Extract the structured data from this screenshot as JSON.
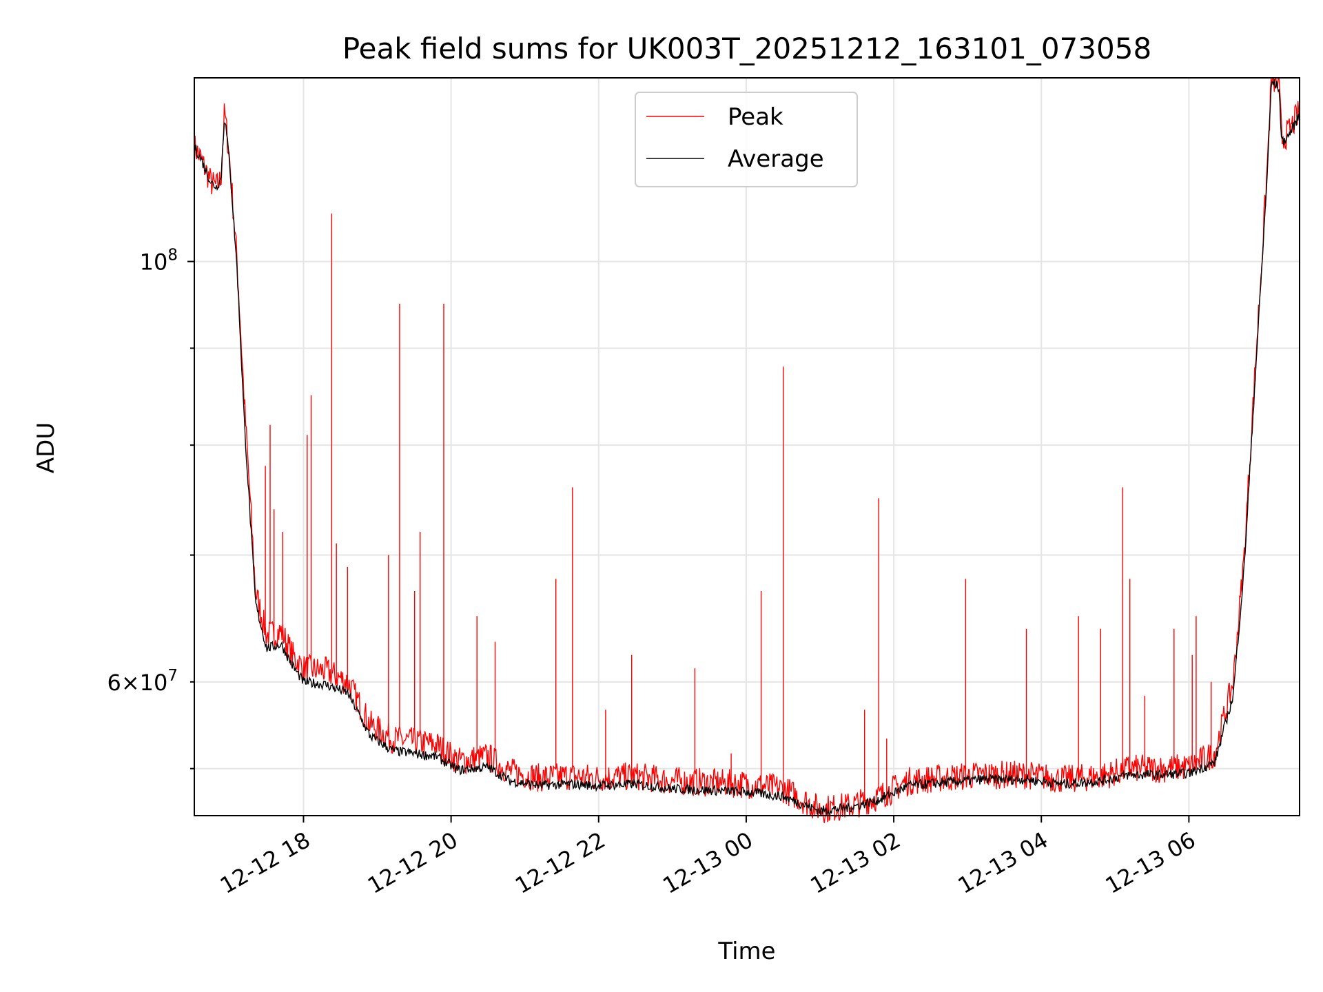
{
  "chart_data": {
    "type": "line",
    "title": "Peak field sums for UK003T_20251212_163101_073058",
    "xlabel": "Time",
    "ylabel": "ADU",
    "y_scale": "log",
    "ylim": [
      51000000,
      125000000
    ],
    "x_unit": "hours since 2025-12-12 00:00",
    "xlim": [
      16.52,
      31.5
    ],
    "x_ticks": [
      {
        "value": 18,
        "label": "12-12 18"
      },
      {
        "value": 20,
        "label": "12-12 20"
      },
      {
        "value": 22,
        "label": "12-12 22"
      },
      {
        "value": 24,
        "label": "12-13 00"
      },
      {
        "value": 26,
        "label": "12-13 02"
      },
      {
        "value": 28,
        "label": "12-13 04"
      },
      {
        "value": 30,
        "label": "12-13 06"
      }
    ],
    "y_ticks_major": [
      {
        "value": 100000000,
        "label": "10^8"
      }
    ],
    "y_ticks_minor": [
      {
        "value": 60000000,
        "label": "6×10^7"
      },
      {
        "value": 70000000
      },
      {
        "value": 80000000
      },
      {
        "value": 90000000
      },
      {
        "value": 54000000
      }
    ],
    "grid": true,
    "legend": {
      "position": "top-center",
      "entries": [
        "Peak",
        "Average"
      ]
    },
    "series": [
      {
        "name": "Peak",
        "color": "#ff0000",
        "points": [
          [
            16.52,
            115000000
          ],
          [
            16.6,
            113500000
          ],
          [
            16.75,
            110000000
          ],
          [
            16.82,
            109500000
          ],
          [
            16.88,
            110500000
          ],
          [
            16.93,
            120000000
          ],
          [
            17.0,
            113000000
          ],
          [
            17.1,
            100000000
          ],
          [
            17.2,
            84000000
          ],
          [
            17.35,
            67000000
          ],
          [
            17.5,
            63500000
          ],
          [
            17.7,
            63800000
          ],
          [
            17.85,
            62000000
          ],
          [
            18.0,
            61000000
          ],
          [
            18.3,
            60800000
          ],
          [
            18.6,
            60000000
          ],
          [
            18.9,
            57000000
          ],
          [
            19.2,
            56000000
          ],
          [
            19.5,
            55800000
          ],
          [
            19.8,
            55600000
          ],
          [
            20.1,
            54500000
          ],
          [
            20.5,
            54800000
          ],
          [
            20.8,
            53800000
          ],
          [
            21.2,
            53400000
          ],
          [
            21.6,
            53500000
          ],
          [
            22.0,
            53400000
          ],
          [
            22.5,
            53500000
          ],
          [
            23.0,
            53200000
          ],
          [
            23.5,
            53100000
          ],
          [
            24.0,
            53000000
          ],
          [
            24.5,
            52700000
          ],
          [
            25.0,
            51400000
          ],
          [
            25.4,
            51600000
          ],
          [
            25.8,
            52200000
          ],
          [
            26.2,
            53200000
          ],
          [
            26.7,
            53400000
          ],
          [
            27.2,
            53600000
          ],
          [
            27.8,
            53600000
          ],
          [
            28.3,
            53300000
          ],
          [
            28.8,
            53500000
          ],
          [
            29.2,
            54000000
          ],
          [
            29.6,
            54000000
          ],
          [
            30.0,
            54100000
          ],
          [
            30.35,
            55000000
          ],
          [
            30.6,
            60000000
          ],
          [
            30.75,
            70000000
          ],
          [
            30.9,
            88000000
          ],
          [
            31.05,
            110000000
          ],
          [
            31.12,
            125000000
          ],
          [
            31.22,
            124000000
          ],
          [
            31.26,
            116000000
          ],
          [
            31.35,
            117000000
          ],
          [
            31.5,
            120000000
          ]
        ],
        "spikes": [
          [
            17.48,
            78000000
          ],
          [
            17.55,
            82000000
          ],
          [
            17.6,
            74000000
          ],
          [
            17.72,
            72000000
          ],
          [
            18.05,
            81000000
          ],
          [
            18.1,
            85000000
          ],
          [
            18.38,
            106000000
          ],
          [
            18.45,
            71000000
          ],
          [
            18.6,
            69000000
          ],
          [
            19.15,
            70000000
          ],
          [
            19.3,
            95000000
          ],
          [
            19.5,
            67000000
          ],
          [
            19.58,
            72000000
          ],
          [
            19.9,
            95000000
          ],
          [
            20.35,
            65000000
          ],
          [
            20.6,
            63000000
          ],
          [
            21.42,
            68000000
          ],
          [
            21.65,
            76000000
          ],
          [
            22.1,
            58000000
          ],
          [
            22.45,
            62000000
          ],
          [
            23.3,
            61000000
          ],
          [
            23.8,
            55000000
          ],
          [
            24.2,
            67000000
          ],
          [
            24.5,
            88000000
          ],
          [
            25.6,
            58000000
          ],
          [
            25.8,
            75000000
          ],
          [
            25.9,
            56000000
          ],
          [
            26.97,
            68000000
          ],
          [
            27.8,
            64000000
          ],
          [
            28.5,
            65000000
          ],
          [
            28.8,
            64000000
          ],
          [
            29.1,
            76000000
          ],
          [
            29.2,
            68000000
          ],
          [
            29.4,
            59000000
          ],
          [
            29.8,
            64000000
          ],
          [
            30.05,
            62000000
          ],
          [
            30.1,
            65000000
          ],
          [
            30.3,
            60000000
          ]
        ]
      },
      {
        "name": "Average",
        "color": "#000000",
        "points": [
          [
            16.52,
            115000000
          ],
          [
            16.6,
            113500000
          ],
          [
            16.75,
            110000000
          ],
          [
            16.82,
            109500000
          ],
          [
            16.88,
            110500000
          ],
          [
            16.93,
            119500000
          ],
          [
            17.0,
            112500000
          ],
          [
            17.1,
            99000000
          ],
          [
            17.2,
            82000000
          ],
          [
            17.35,
            66000000
          ],
          [
            17.5,
            62500000
          ],
          [
            17.7,
            62800000
          ],
          [
            17.85,
            61200000
          ],
          [
            18.0,
            60000000
          ],
          [
            18.3,
            59800000
          ],
          [
            18.6,
            59200000
          ],
          [
            18.9,
            56200000
          ],
          [
            19.2,
            55200000
          ],
          [
            19.5,
            55000000
          ],
          [
            19.8,
            54800000
          ],
          [
            20.1,
            53900000
          ],
          [
            20.5,
            54100000
          ],
          [
            20.8,
            53200000
          ],
          [
            21.2,
            52900000
          ],
          [
            21.6,
            53000000
          ],
          [
            22.0,
            52900000
          ],
          [
            22.5,
            53000000
          ],
          [
            23.0,
            52700000
          ],
          [
            23.5,
            52600000
          ],
          [
            24.0,
            52500000
          ],
          [
            24.5,
            52200000
          ],
          [
            25.0,
            51300000
          ],
          [
            25.4,
            51500000
          ],
          [
            25.8,
            52000000
          ],
          [
            26.2,
            52900000
          ],
          [
            26.7,
            53100000
          ],
          [
            27.2,
            53300000
          ],
          [
            27.8,
            53300000
          ],
          [
            28.3,
            53000000
          ],
          [
            28.8,
            53200000
          ],
          [
            29.2,
            53600000
          ],
          [
            29.6,
            53600000
          ],
          [
            30.0,
            53700000
          ],
          [
            30.35,
            54400000
          ],
          [
            30.6,
            59000000
          ],
          [
            30.75,
            69000000
          ],
          [
            30.9,
            87000000
          ],
          [
            31.05,
            109000000
          ],
          [
            31.12,
            124500000
          ],
          [
            31.22,
            123500000
          ],
          [
            31.26,
            115500000
          ],
          [
            31.35,
            116500000
          ],
          [
            31.5,
            119500000
          ]
        ]
      }
    ]
  }
}
